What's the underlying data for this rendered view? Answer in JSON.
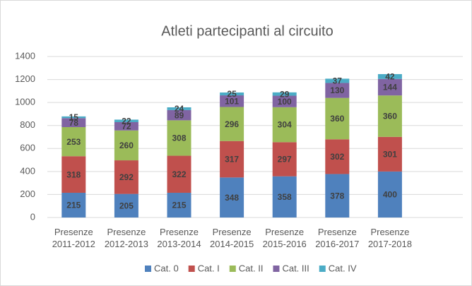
{
  "chart_data": {
    "type": "stacked_bar",
    "title": "Atleti partecipanti al circuito",
    "categories": [
      "Presenze 2011-2012",
      "Presenze 2012-2013",
      "Presenze 2013-2014",
      "Presenze 2014-2015",
      "Presenze 2015-2016",
      "Presenze 2016-2017",
      "Presenze 2017-2018"
    ],
    "series": [
      {
        "name": "Cat. 0",
        "color": "#4f81bd",
        "values": [
          215,
          205,
          215,
          348,
          358,
          378,
          400
        ]
      },
      {
        "name": "Cat. I",
        "color": "#c0504d",
        "values": [
          318,
          292,
          322,
          317,
          297,
          302,
          301
        ]
      },
      {
        "name": "Cat. II",
        "color": "#9bbb59",
        "values": [
          253,
          260,
          308,
          296,
          304,
          360,
          360
        ]
      },
      {
        "name": "Cat. III",
        "color": "#8064a2",
        "values": [
          78,
          72,
          89,
          101,
          100,
          130,
          144
        ]
      },
      {
        "name": "Cat. IV",
        "color": "#4bacc6",
        "values": [
          15,
          22,
          24,
          25,
          29,
          37,
          42
        ]
      }
    ],
    "ylim": [
      0,
      1400
    ],
    "yticks": [
      0,
      200,
      400,
      600,
      800,
      1000,
      1200,
      1400
    ],
    "grid": true,
    "legend": "bottom"
  }
}
